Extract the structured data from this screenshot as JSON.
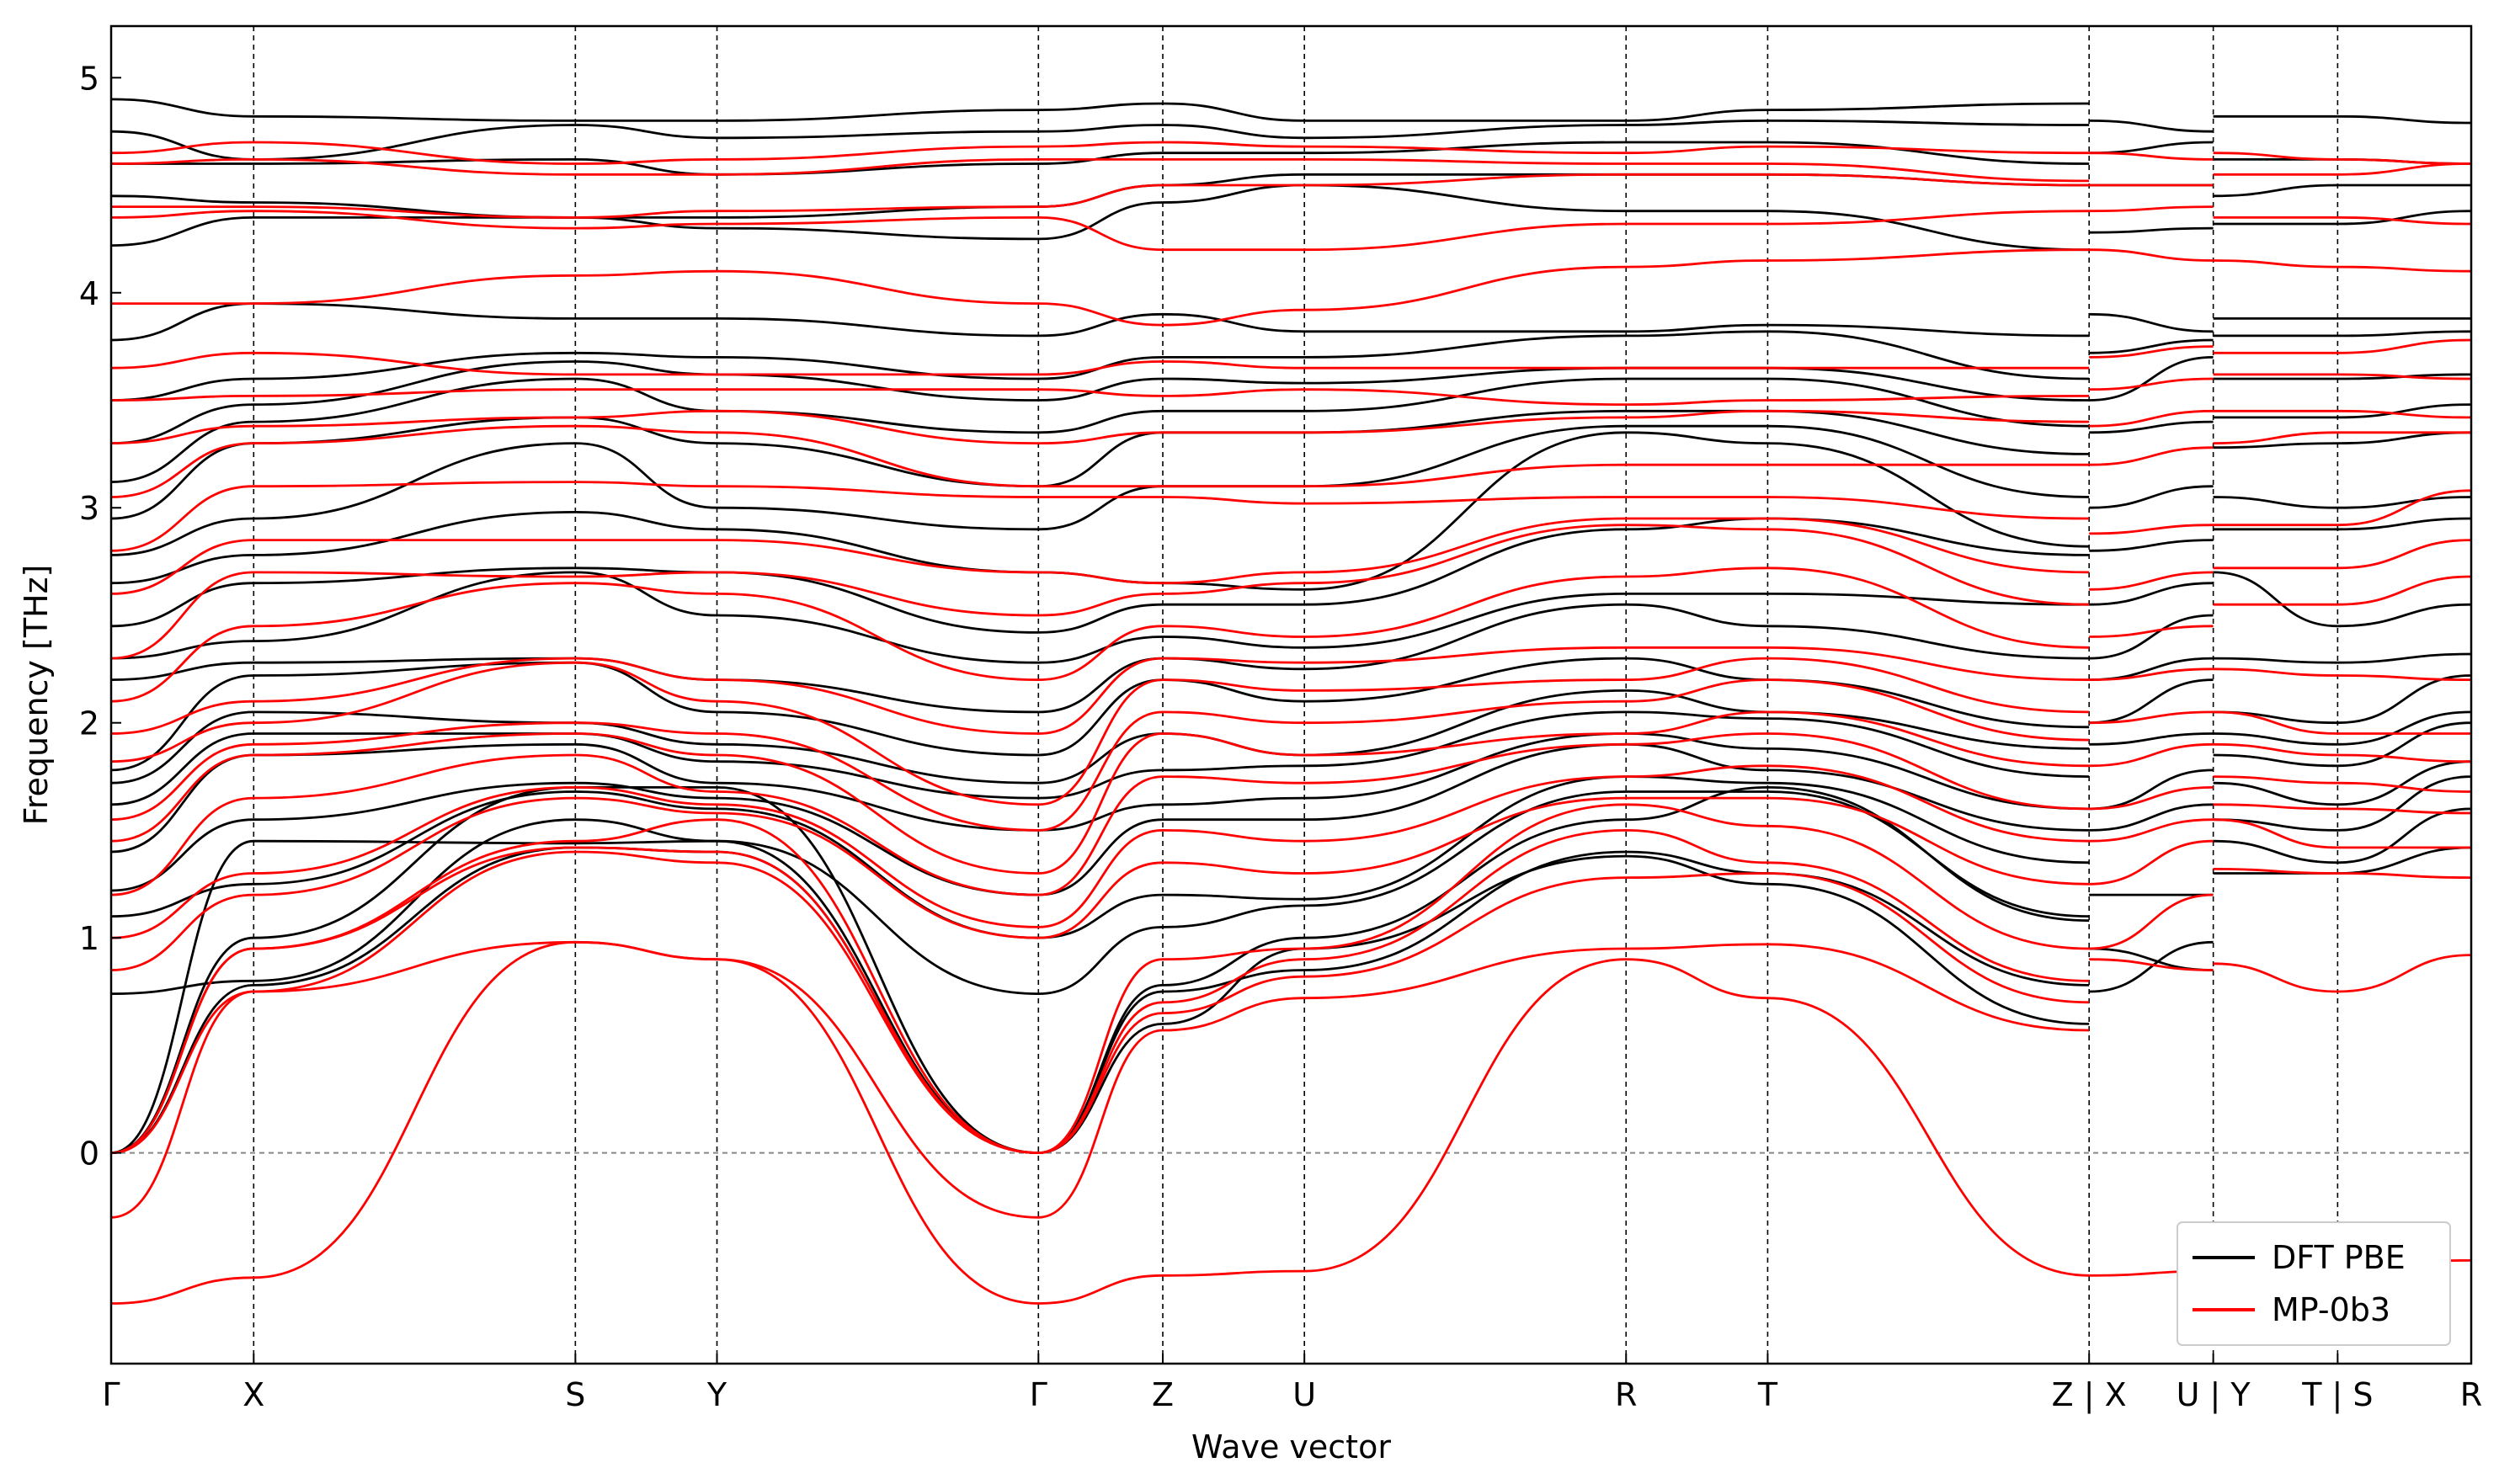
{
  "chart_data": {
    "type": "line",
    "title": "",
    "xlabel": "Wave vector",
    "ylabel": "Frequency [THz]",
    "ylim": [
      -0.98,
      5.24
    ],
    "yticks": [
      0,
      1,
      2,
      3,
      4,
      5
    ],
    "grid": false,
    "zero_line": true,
    "legend_position": "bottom-right",
    "path_labels": [
      "Γ",
      "X",
      "S",
      "Y",
      "Γ",
      "Z",
      "U",
      "R",
      "T",
      "Z | X",
      "U | Y",
      "T | S",
      "R"
    ],
    "path_positions": [
      0,
      0.0604,
      0.1967,
      0.2567,
      0.3929,
      0.4456,
      0.5056,
      0.6419,
      0.7019,
      0.8381,
      0.8907,
      0.9434,
      1.0
    ],
    "segments": [
      "Γ-X",
      "X-S",
      "S-Y",
      "Y-Γ",
      "Γ-Z",
      "Z-U",
      "U-R",
      "R-T",
      "T-Z",
      "X-U",
      "Y-T",
      "S-R"
    ],
    "series": [
      {
        "name": "DFT PBE",
        "color": "#000000",
        "node_values": [
          [
            0.0,
            1.0,
            1.7,
            1.7,
            0.0,
            0.6,
            0.95,
            1.38,
            1.25,
            0.6
          ],
          [
            0.0,
            0.78,
            1.42,
            1.4,
            0.0,
            0.75,
            0.85,
            1.4,
            1.3,
            0.78
          ],
          [
            0.0,
            1.45,
            1.44,
            1.45,
            0.0,
            0.78,
            1.0,
            1.55,
            1.7,
            1.08
          ],
          [
            0.74,
            0.8,
            1.55,
            1.45,
            0.74,
            1.05,
            1.15,
            1.68,
            1.68,
            1.1
          ],
          [
            1.1,
            1.25,
            1.68,
            1.6,
            1.0,
            1.2,
            1.18,
            1.75,
            1.72,
            1.35
          ],
          [
            1.22,
            1.55,
            1.72,
            1.65,
            1.2,
            1.55,
            1.55,
            1.9,
            1.78,
            1.5
          ],
          [
            1.4,
            1.85,
            1.9,
            1.72,
            1.5,
            1.62,
            1.65,
            1.95,
            1.88,
            1.6
          ],
          [
            1.62,
            1.95,
            1.95,
            1.82,
            1.65,
            1.78,
            1.8,
            2.05,
            2.02,
            1.75
          ],
          [
            1.72,
            2.05,
            2.0,
            1.9,
            1.72,
            1.95,
            1.85,
            2.15,
            2.05,
            1.88
          ],
          [
            1.78,
            2.22,
            2.28,
            2.05,
            1.85,
            2.2,
            2.1,
            2.3,
            2.2,
            1.98
          ],
          [
            2.2,
            2.28,
            2.3,
            2.2,
            2.05,
            2.3,
            2.25,
            2.55,
            2.45,
            2.3
          ],
          [
            2.3,
            2.38,
            2.7,
            2.5,
            2.28,
            2.4,
            2.35,
            2.6,
            2.6,
            2.55
          ],
          [
            2.45,
            2.65,
            2.72,
            2.7,
            2.42,
            2.55,
            2.55,
            2.9,
            2.95,
            2.78
          ],
          [
            2.65,
            2.78,
            2.98,
            2.9,
            2.7,
            2.65,
            2.62,
            3.35,
            3.3,
            2.82
          ],
          [
            2.78,
            2.95,
            3.3,
            3.0,
            2.9,
            3.1,
            3.1,
            3.38,
            3.38,
            3.05
          ],
          [
            2.95,
            3.3,
            3.42,
            3.3,
            3.1,
            3.35,
            3.35,
            3.45,
            3.45,
            3.25
          ],
          [
            3.12,
            3.4,
            3.6,
            3.45,
            3.35,
            3.45,
            3.45,
            3.6,
            3.6,
            3.38
          ],
          [
            3.3,
            3.48,
            3.68,
            3.62,
            3.5,
            3.6,
            3.58,
            3.65,
            3.65,
            3.5
          ],
          [
            3.5,
            3.6,
            3.72,
            3.7,
            3.6,
            3.7,
            3.7,
            3.8,
            3.82,
            3.6
          ],
          [
            3.78,
            3.95,
            3.88,
            3.88,
            3.8,
            3.9,
            3.82,
            3.82,
            3.85,
            3.8
          ],
          [
            4.22,
            4.35,
            4.35,
            4.3,
            4.25,
            4.42,
            4.5,
            4.38,
            4.38,
            4.2
          ],
          [
            4.45,
            4.42,
            4.35,
            4.35,
            4.4,
            4.5,
            4.55,
            4.55,
            4.55,
            4.5
          ],
          [
            4.6,
            4.6,
            4.62,
            4.55,
            4.6,
            4.65,
            4.65,
            4.7,
            4.7,
            4.6
          ],
          [
            4.75,
            4.62,
            4.78,
            4.72,
            4.75,
            4.78,
            4.72,
            4.78,
            4.8,
            4.78
          ],
          [
            4.9,
            4.82,
            4.8,
            4.8,
            4.85,
            4.88,
            4.8,
            4.8,
            4.85,
            4.88
          ]
        ]
      },
      {
        "name": "MP-0b3",
        "color": "#ff0000",
        "node_values": [
          [
            -0.7,
            -0.58,
            0.98,
            0.9,
            -0.7,
            -0.57,
            -0.55,
            0.9,
            0.72,
            -0.57
          ],
          [
            -0.3,
            0.75,
            0.98,
            0.9,
            -0.3,
            0.57,
            0.72,
            0.95,
            0.97,
            0.57
          ],
          [
            0.0,
            0.75,
            1.4,
            1.35,
            0.0,
            0.65,
            0.82,
            1.28,
            1.3,
            0.7
          ],
          [
            0.0,
            0.95,
            1.42,
            1.4,
            0.0,
            0.7,
            0.9,
            1.5,
            1.35,
            0.8
          ],
          [
            0.0,
            0.95,
            1.45,
            1.55,
            0.0,
            0.9,
            0.95,
            1.62,
            1.52,
            0.95
          ],
          [
            0.85,
            1.2,
            1.65,
            1.58,
            1.0,
            1.35,
            1.3,
            1.65,
            1.65,
            1.25
          ],
          [
            1.0,
            1.3,
            1.7,
            1.62,
            1.05,
            1.5,
            1.45,
            1.75,
            1.8,
            1.45
          ],
          [
            1.2,
            1.65,
            1.85,
            1.68,
            1.2,
            1.75,
            1.72,
            1.9,
            1.95,
            1.6
          ],
          [
            1.45,
            1.85,
            1.95,
            1.85,
            1.3,
            1.95,
            1.85,
            1.95,
            2.05,
            1.8
          ],
          [
            1.55,
            1.9,
            2.0,
            1.95,
            1.5,
            2.05,
            2.0,
            2.1,
            2.2,
            1.92
          ],
          [
            1.82,
            2.0,
            2.28,
            2.1,
            1.62,
            2.2,
            2.15,
            2.2,
            2.3,
            2.05
          ],
          [
            1.95,
            2.1,
            2.3,
            2.2,
            1.95,
            2.3,
            2.28,
            2.35,
            2.35,
            2.2
          ],
          [
            2.1,
            2.45,
            2.65,
            2.6,
            2.2,
            2.45,
            2.4,
            2.68,
            2.72,
            2.35
          ],
          [
            2.3,
            2.7,
            2.68,
            2.7,
            2.5,
            2.6,
            2.65,
            2.92,
            2.9,
            2.55
          ],
          [
            2.6,
            2.85,
            2.85,
            2.85,
            2.7,
            2.65,
            2.7,
            2.95,
            2.95,
            2.7
          ],
          [
            2.8,
            3.1,
            3.12,
            3.1,
            3.05,
            3.05,
            3.02,
            3.05,
            3.05,
            2.95
          ],
          [
            3.05,
            3.3,
            3.38,
            3.35,
            3.1,
            3.1,
            3.1,
            3.2,
            3.2,
            3.2
          ],
          [
            3.3,
            3.38,
            3.42,
            3.45,
            3.3,
            3.35,
            3.35,
            3.42,
            3.45,
            3.4
          ],
          [
            3.5,
            3.52,
            3.55,
            3.55,
            3.55,
            3.52,
            3.55,
            3.48,
            3.5,
            3.52
          ],
          [
            3.65,
            3.72,
            3.62,
            3.62,
            3.62,
            3.68,
            3.65,
            3.65,
            3.65,
            3.65
          ],
          [
            3.95,
            3.95,
            4.08,
            4.1,
            3.95,
            3.85,
            3.92,
            4.12,
            4.15,
            4.2
          ],
          [
            4.35,
            4.38,
            4.3,
            4.32,
            4.35,
            4.2,
            4.2,
            4.32,
            4.32,
            4.38
          ],
          [
            4.4,
            4.4,
            4.35,
            4.38,
            4.4,
            4.5,
            4.5,
            4.55,
            4.55,
            4.5
          ],
          [
            4.6,
            4.62,
            4.55,
            4.55,
            4.62,
            4.62,
            4.62,
            4.6,
            4.6,
            4.52
          ],
          [
            4.65,
            4.7,
            4.6,
            4.62,
            4.68,
            4.7,
            4.68,
            4.65,
            4.68,
            4.65
          ]
        ]
      }
    ],
    "tail_node_values": {
      "DFT PBE": [
        [
          0.75,
          0.98,
          1.3,
          1.3,
          1.42
        ],
        [
          0.95,
          0.85,
          1.45,
          1.35,
          1.6
        ],
        [
          1.2,
          1.2,
          1.55,
          1.5,
          1.75
        ],
        [
          1.5,
          1.62,
          1.72,
          1.62,
          1.82
        ],
        [
          1.6,
          1.78,
          1.85,
          1.8,
          2.0
        ],
        [
          1.9,
          1.95,
          1.95,
          1.9,
          2.05
        ],
        [
          2.0,
          2.2,
          2.05,
          2.0,
          2.22
        ],
        [
          2.2,
          2.3,
          2.3,
          2.28,
          2.32
        ],
        [
          2.3,
          2.5,
          2.7,
          2.45,
          2.55
        ],
        [
          2.55,
          2.65,
          2.9,
          2.9,
          2.95
        ],
        [
          2.8,
          2.85,
          3.05,
          3.0,
          3.05
        ],
        [
          3.0,
          3.1,
          3.28,
          3.3,
          3.35
        ],
        [
          3.35,
          3.4,
          3.42,
          3.42,
          3.48
        ],
        [
          3.5,
          3.7,
          3.6,
          3.6,
          3.62
        ],
        [
          3.72,
          3.78,
          3.8,
          3.8,
          3.82
        ],
        [
          3.9,
          3.82,
          3.88,
          3.88,
          3.88
        ],
        [
          4.28,
          4.3,
          4.32,
          4.32,
          4.38
        ],
        [
          4.5,
          4.5,
          4.45,
          4.5,
          4.5
        ],
        [
          4.65,
          4.7,
          4.62,
          4.62,
          4.6
        ],
        [
          4.8,
          4.75,
          4.82,
          4.82,
          4.79
        ]
      ],
      "MP-0b3": [
        [
          -0.57,
          -0.55,
          -0.52,
          -0.52,
          -0.5
        ],
        [
          0.9,
          0.85,
          0.88,
          0.75,
          0.92
        ],
        [
          0.95,
          1.2,
          1.32,
          1.3,
          1.28
        ],
        [
          1.25,
          1.45,
          1.55,
          1.42,
          1.42
        ],
        [
          1.45,
          1.55,
          1.62,
          1.6,
          1.58
        ],
        [
          1.6,
          1.7,
          1.75,
          1.72,
          1.68
        ],
        [
          1.8,
          1.9,
          1.9,
          1.85,
          1.82
        ],
        [
          2.0,
          2.05,
          2.05,
          1.95,
          1.95
        ],
        [
          2.2,
          2.25,
          2.25,
          2.22,
          2.2
        ],
        [
          2.4,
          2.45,
          2.55,
          2.55,
          2.68
        ],
        [
          2.62,
          2.7,
          2.72,
          2.72,
          2.85
        ],
        [
          2.88,
          2.92,
          2.92,
          2.92,
          3.08
        ],
        [
          3.2,
          3.28,
          3.3,
          3.35,
          3.35
        ],
        [
          3.38,
          3.45,
          3.45,
          3.45,
          3.42
        ],
        [
          3.55,
          3.6,
          3.62,
          3.62,
          3.6
        ],
        [
          3.7,
          3.75,
          3.72,
          3.72,
          3.78
        ],
        [
          4.2,
          4.15,
          4.15,
          4.12,
          4.1
        ],
        [
          4.38,
          4.4,
          4.35,
          4.35,
          4.32
        ],
        [
          4.5,
          4.5,
          4.55,
          4.55,
          4.6
        ],
        [
          4.65,
          4.62,
          4.65,
          4.62,
          4.6
        ]
      ]
    },
    "tail_nodes": [
      0.8381,
      0.8907,
      0.8907,
      0.9434,
      0.9434,
      1.0
    ],
    "legend": [
      "DFT PBE",
      "MP-0b3"
    ]
  }
}
